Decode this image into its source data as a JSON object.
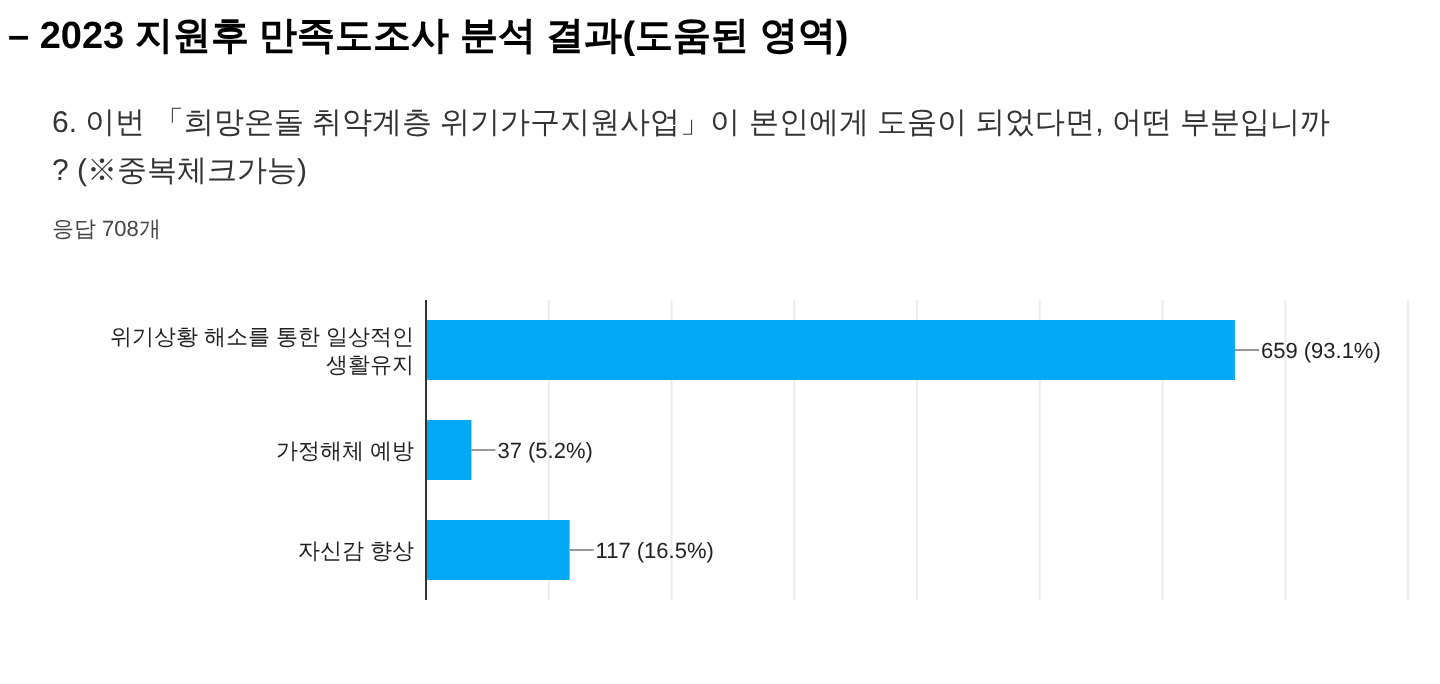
{
  "chart_data": {
    "type": "bar",
    "orientation": "horizontal",
    "title": "– 2023 지원후 만족도조사 분석 결과(도움된 영역)",
    "subtitle": "6. 이번 「희망온돌 취약계층 위기가구지원사업」이 본인에게 도움이 되었다면, 어떤 부분입니까? (※중복체크가능)",
    "annotations": [
      "응답 708개"
    ],
    "categories": [
      "위기상황 해소를 통한 일상적인 생활유지",
      "가정해체 예방",
      "자신감 향상"
    ],
    "values": [
      659,
      37,
      117
    ],
    "value_labels": [
      "659 (93.1%)",
      "37 (5.2%)",
      "117 (16.5%)"
    ],
    "color": "#03a9f4",
    "xlim": [
      0,
      800
    ],
    "xticks": [
      {
        "value": 0,
        "label": null
      },
      {
        "value": 100,
        "label": null
      },
      {
        "value": 200,
        "label": null
      },
      {
        "value": 300,
        "label": null
      },
      {
        "value": 400,
        "label": null
      },
      {
        "value": 500,
        "label": null
      },
      {
        "value": 600,
        "label": null
      },
      {
        "value": 700,
        "label": null
      },
      {
        "value": 800,
        "label": null
      }
    ],
    "grid": "x"
  }
}
